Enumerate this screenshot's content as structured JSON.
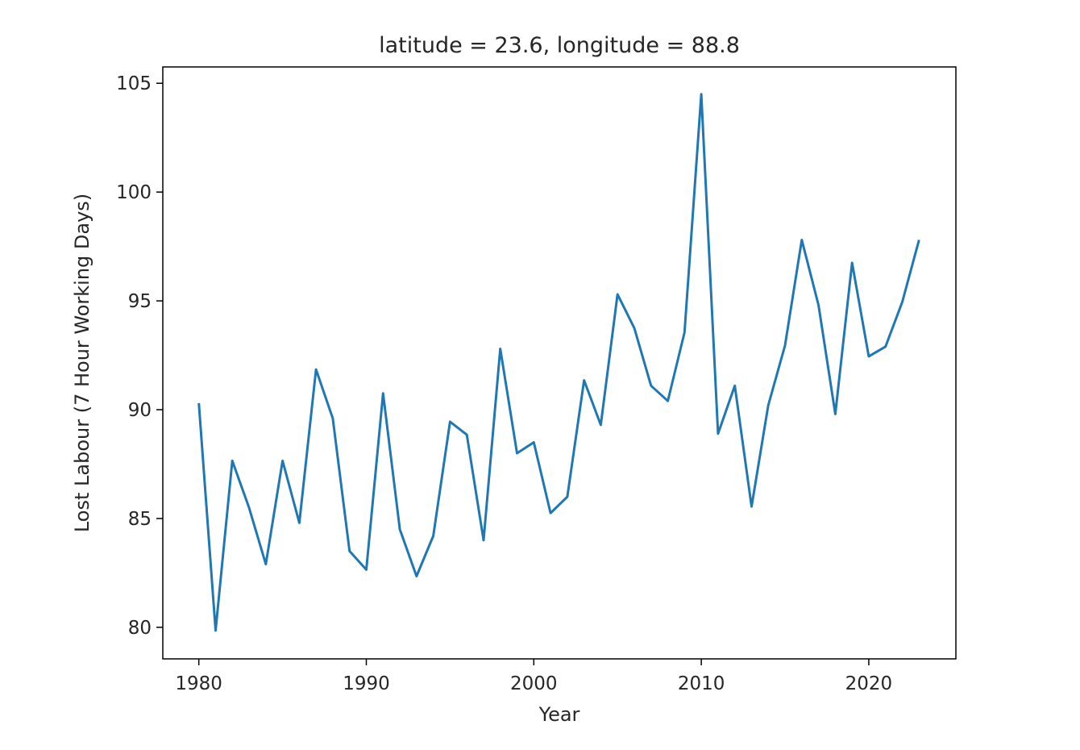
{
  "chart_data": {
    "type": "line",
    "title": "latitude = 23.6, longitude = 88.8",
    "xlabel": "Year",
    "ylabel": "Lost Labour (7 Hour Working Days)",
    "xlim": [
      1977.85,
      2025.2
    ],
    "ylim": [
      78.55,
      105.75
    ],
    "xticks": [
      1980,
      1990,
      2000,
      2010,
      2020
    ],
    "yticks": [
      80,
      85,
      90,
      95,
      100,
      105
    ],
    "grid": false,
    "line_color": "#1f77b4",
    "x": [
      1980,
      1981,
      1982,
      1983,
      1984,
      1985,
      1986,
      1987,
      1988,
      1989,
      1990,
      1991,
      1992,
      1993,
      1994,
      1995,
      1996,
      1997,
      1998,
      1999,
      2000,
      2001,
      2002,
      2003,
      2004,
      2005,
      2006,
      2007,
      2008,
      2009,
      2010,
      2011,
      2012,
      2013,
      2014,
      2015,
      2016,
      2017,
      2018,
      2019,
      2020,
      2021,
      2022,
      2023
    ],
    "values": [
      90.3,
      79.85,
      87.65,
      85.5,
      82.9,
      87.65,
      84.8,
      91.85,
      89.6,
      83.5,
      82.65,
      90.75,
      84.5,
      82.35,
      84.2,
      89.45,
      88.85,
      84.0,
      92.8,
      88.0,
      88.5,
      85.25,
      86.0,
      91.35,
      89.3,
      95.3,
      93.75,
      91.1,
      90.4,
      93.55,
      104.5,
      88.9,
      91.1,
      85.55,
      90.2,
      92.95,
      97.8,
      94.8,
      89.8,
      96.75,
      92.45,
      92.9,
      94.95,
      97.8
    ]
  }
}
